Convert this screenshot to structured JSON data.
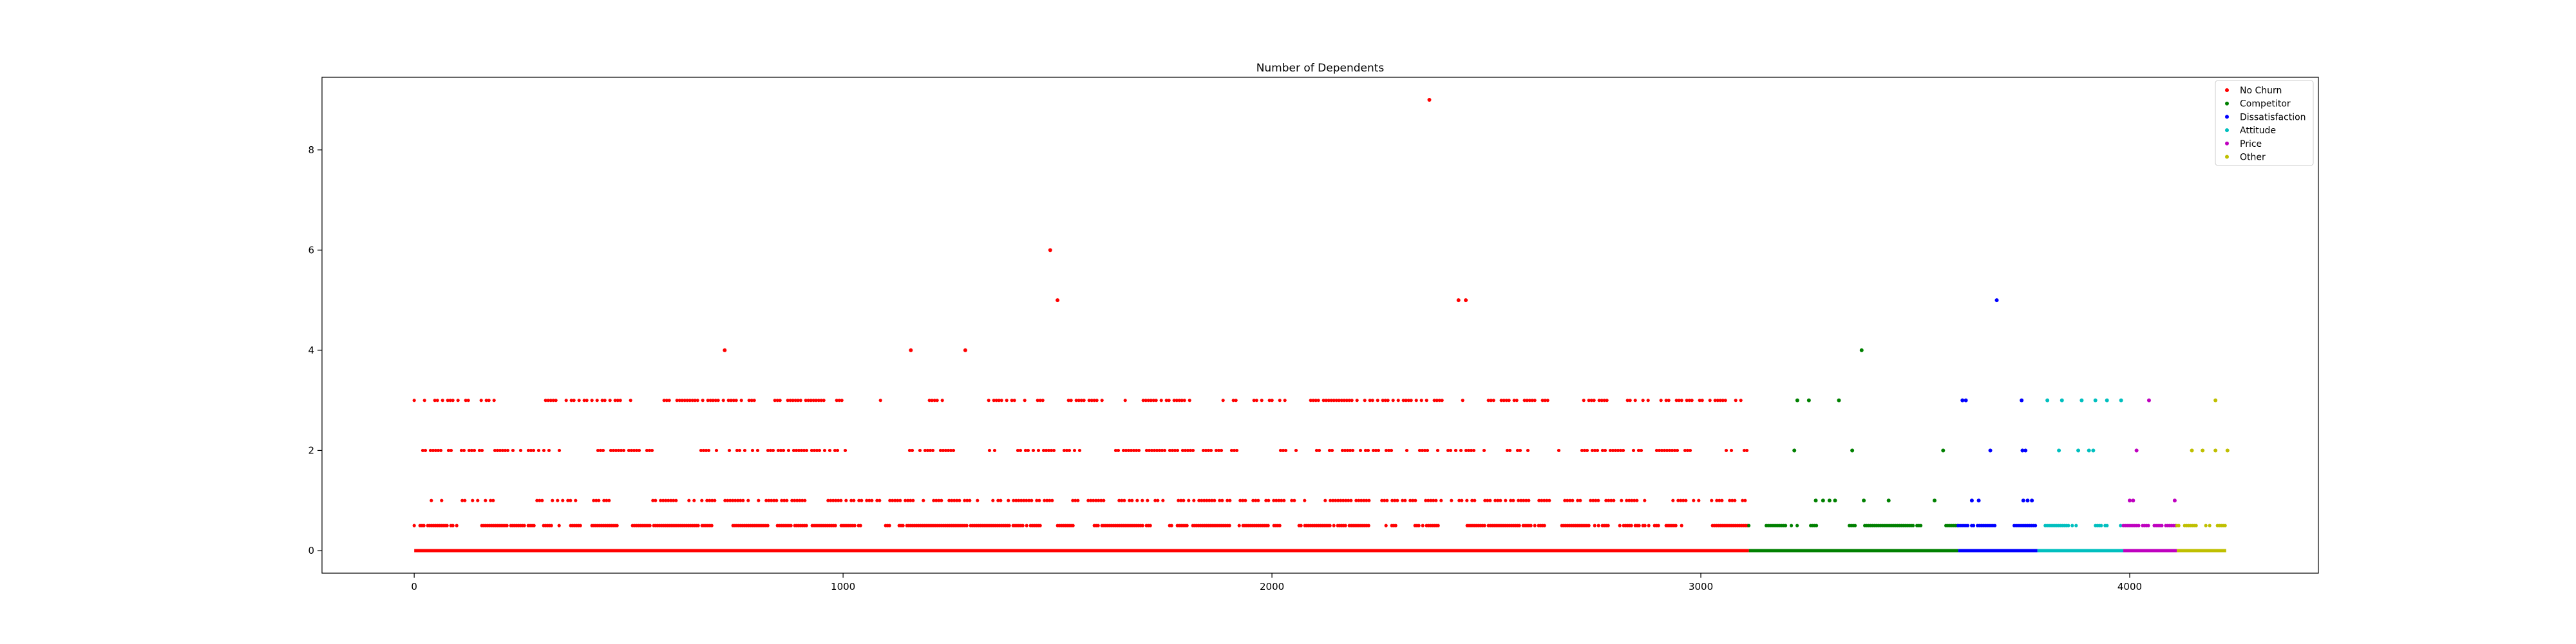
{
  "chart_data": {
    "type": "scatter",
    "title": "Number of Dependents",
    "xlabel": "",
    "ylabel": "",
    "xlim": [
      -215,
      4440
    ],
    "ylim": [
      -0.45,
      9.45
    ],
    "x_ticks": [
      0,
      1000,
      2000,
      3000,
      4000
    ],
    "y_ticks": [
      0,
      2,
      4,
      6,
      8
    ],
    "grid": false,
    "legend_position": "top-right",
    "series": [
      {
        "name": "No Churn",
        "color": "#ff0000",
        "x_range": [
          0,
          3112
        ],
        "bands": [
          {
            "y": 0,
            "start": 0,
            "end": 3112,
            "density": "continuous"
          },
          {
            "y": 0.5,
            "start": 0,
            "end": 3112,
            "density": "dense"
          },
          {
            "y": 1,
            "start": 40,
            "end": 3112,
            "density": "moderate"
          },
          {
            "y": 2,
            "start": 20,
            "end": 3112,
            "density": "moderate"
          },
          {
            "y": 3,
            "start": 0,
            "end": 3112,
            "density": "moderate"
          }
        ],
        "outliers": [
          {
            "x": 724,
            "y": 4
          },
          {
            "x": 1158,
            "y": 4
          },
          {
            "x": 1285,
            "y": 4
          },
          {
            "x": 1483,
            "y": 6
          },
          {
            "x": 1500,
            "y": 5
          },
          {
            "x": 2367,
            "y": 9
          },
          {
            "x": 2435,
            "y": 5
          },
          {
            "x": 2452,
            "y": 5
          }
        ]
      },
      {
        "name": "Competitor",
        "color": "#008000",
        "x_range": [
          3112,
          3600
        ],
        "bands": [
          {
            "y": 0,
            "start": 3112,
            "end": 3600,
            "density": "continuous"
          },
          {
            "y": 0.5,
            "start": 3112,
            "end": 3600,
            "density": "dense"
          }
        ],
        "points": [
          {
            "x": 3225,
            "y": 3
          },
          {
            "x": 3252,
            "y": 3
          },
          {
            "x": 3322,
            "y": 3
          },
          {
            "x": 3218,
            "y": 2
          },
          {
            "x": 3353,
            "y": 2
          },
          {
            "x": 3565,
            "y": 2
          },
          {
            "x": 3268,
            "y": 1
          },
          {
            "x": 3285,
            "y": 1
          },
          {
            "x": 3300,
            "y": 1
          },
          {
            "x": 3313,
            "y": 1
          },
          {
            "x": 3380,
            "y": 1
          },
          {
            "x": 3438,
            "y": 1
          },
          {
            "x": 3545,
            "y": 1
          },
          {
            "x": 3375,
            "y": 4
          }
        ]
      },
      {
        "name": "Dissatisfaction",
        "color": "#0000ff",
        "x_range": [
          3600,
          3785
        ],
        "bands": [
          {
            "y": 0,
            "start": 3600,
            "end": 3785,
            "density": "continuous"
          },
          {
            "y": 0.5,
            "start": 3600,
            "end": 3785,
            "density": "dense"
          }
        ],
        "points": [
          {
            "x": 3610,
            "y": 3
          },
          {
            "x": 3618,
            "y": 3
          },
          {
            "x": 3748,
            "y": 3
          },
          {
            "x": 3675,
            "y": 2
          },
          {
            "x": 3750,
            "y": 2
          },
          {
            "x": 3757,
            "y": 2
          },
          {
            "x": 3632,
            "y": 1
          },
          {
            "x": 3648,
            "y": 1
          },
          {
            "x": 3752,
            "y": 1
          },
          {
            "x": 3762,
            "y": 1
          },
          {
            "x": 3772,
            "y": 1
          },
          {
            "x": 3690,
            "y": 5
          }
        ]
      },
      {
        "name": "Attitude",
        "color": "#00bfbf",
        "x_range": [
          3785,
          3985
        ],
        "bands": [
          {
            "y": 0,
            "start": 3785,
            "end": 3985,
            "density": "continuous"
          },
          {
            "y": 0.5,
            "start": 3785,
            "end": 3985,
            "density": "dense"
          }
        ],
        "points": [
          {
            "x": 3808,
            "y": 3
          },
          {
            "x": 3842,
            "y": 3
          },
          {
            "x": 3888,
            "y": 3
          },
          {
            "x": 3920,
            "y": 3
          },
          {
            "x": 3947,
            "y": 3
          },
          {
            "x": 3980,
            "y": 3
          },
          {
            "x": 3835,
            "y": 2
          },
          {
            "x": 3880,
            "y": 2
          },
          {
            "x": 3905,
            "y": 2
          },
          {
            "x": 3915,
            "y": 2
          }
        ]
      },
      {
        "name": "Price",
        "color": "#bf00bf",
        "x_range": [
          3985,
          4110
        ],
        "bands": [
          {
            "y": 0,
            "start": 3985,
            "end": 4110,
            "density": "continuous"
          },
          {
            "y": 0.5,
            "start": 3985,
            "end": 4110,
            "density": "dense"
          }
        ],
        "points": [
          {
            "x": 4045,
            "y": 3
          },
          {
            "x": 4016,
            "y": 2
          },
          {
            "x": 4000,
            "y": 1
          },
          {
            "x": 4008,
            "y": 1
          },
          {
            "x": 4105,
            "y": 1
          }
        ]
      },
      {
        "name": "Other",
        "color": "#bfbf00",
        "x_range": [
          4110,
          4225
        ],
        "bands": [
          {
            "y": 0,
            "start": 4110,
            "end": 4225,
            "density": "continuous"
          },
          {
            "y": 0.5,
            "start": 4110,
            "end": 4225,
            "density": "dense"
          }
        ],
        "points": [
          {
            "x": 4200,
            "y": 3
          },
          {
            "x": 4145,
            "y": 2
          },
          {
            "x": 4170,
            "y": 2
          },
          {
            "x": 4200,
            "y": 2
          },
          {
            "x": 4228,
            "y": 2
          }
        ]
      }
    ]
  }
}
